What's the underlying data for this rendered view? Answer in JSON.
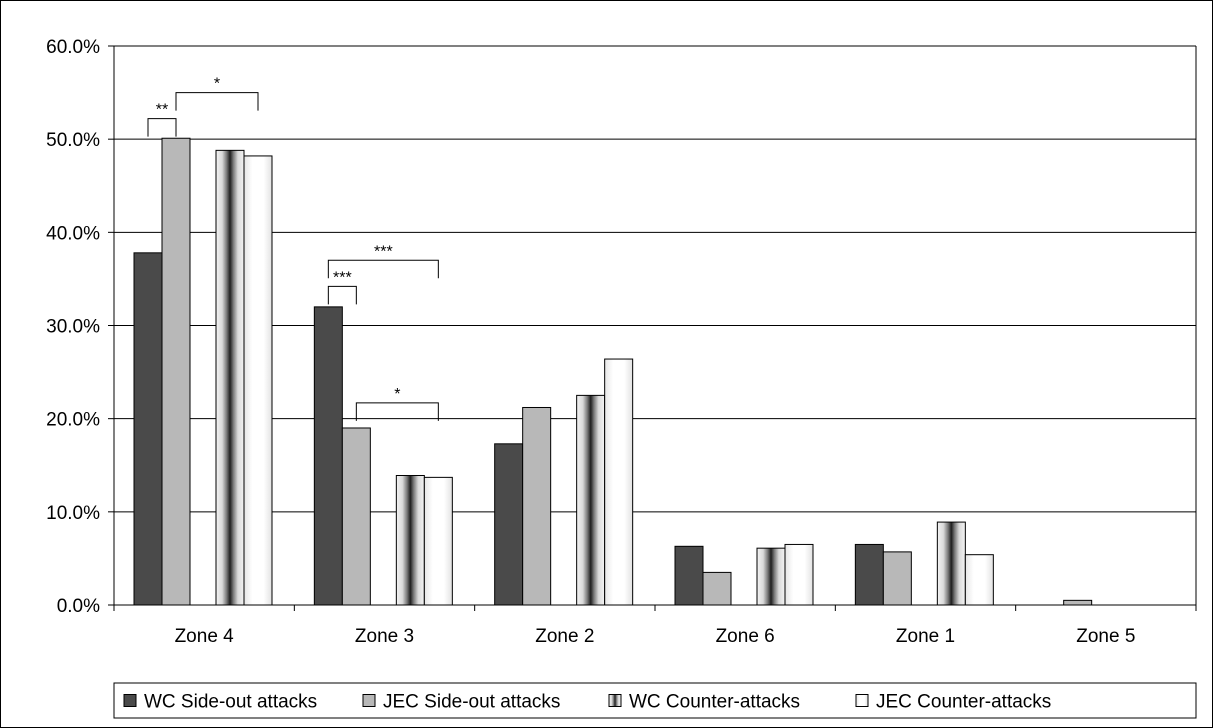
{
  "chart_data": {
    "type": "bar",
    "title": "",
    "xlabel": "",
    "ylabel": "",
    "ylim": [
      0,
      60
    ],
    "ytick_step": 10,
    "y_format": "percent_1dp",
    "grid": true,
    "legend_position": "bottom",
    "categories": [
      "Zone 4",
      "Zone 3",
      "Zone 2",
      "Zone 6",
      "Zone 1",
      "Zone 5"
    ],
    "y_ticks": [
      "0.0%",
      "10.0%",
      "20.0%",
      "30.0%",
      "40.0%",
      "50.0%",
      "60.0%"
    ],
    "series": [
      {
        "name": "WC Side-out attacks",
        "pattern": "solid-dark",
        "color": "#4a4a4a",
        "values": [
          37.8,
          32.0,
          17.3,
          6.3,
          6.5,
          0.0
        ]
      },
      {
        "name": "JEC Side-out attacks",
        "pattern": "solid-light",
        "color": "#b8b8b8",
        "values": [
          50.1,
          19.0,
          21.2,
          3.5,
          5.7,
          0.5
        ]
      },
      {
        "name": "WC Counter-attacks",
        "pattern": "vertical-gradient",
        "color": "#6e6e6e",
        "values": [
          48.8,
          13.9,
          22.5,
          6.1,
          8.9,
          0.0
        ]
      },
      {
        "name": "JEC Counter-attacks",
        "pattern": "light-gradient",
        "color": "#f0f0f0",
        "values": [
          48.2,
          13.7,
          26.4,
          6.5,
          5.4,
          0.0
        ]
      }
    ],
    "annotations": [
      {
        "label": "**",
        "category_index": 0,
        "from_series": 0,
        "to_series": 1,
        "y": 52.2
      },
      {
        "label": "*",
        "category_index": 0,
        "from_series": 1,
        "to_series": 3,
        "y": 55.0
      },
      {
        "label": "***",
        "category_index": 1,
        "from_series": 0,
        "to_series": 1,
        "y": 34.2
      },
      {
        "label": "***",
        "category_index": 1,
        "from_series": 0,
        "to_series": 3,
        "y": 37.0
      },
      {
        "label": "*",
        "category_index": 1,
        "from_series": 1,
        "to_series": 3,
        "y": 21.7
      }
    ]
  }
}
